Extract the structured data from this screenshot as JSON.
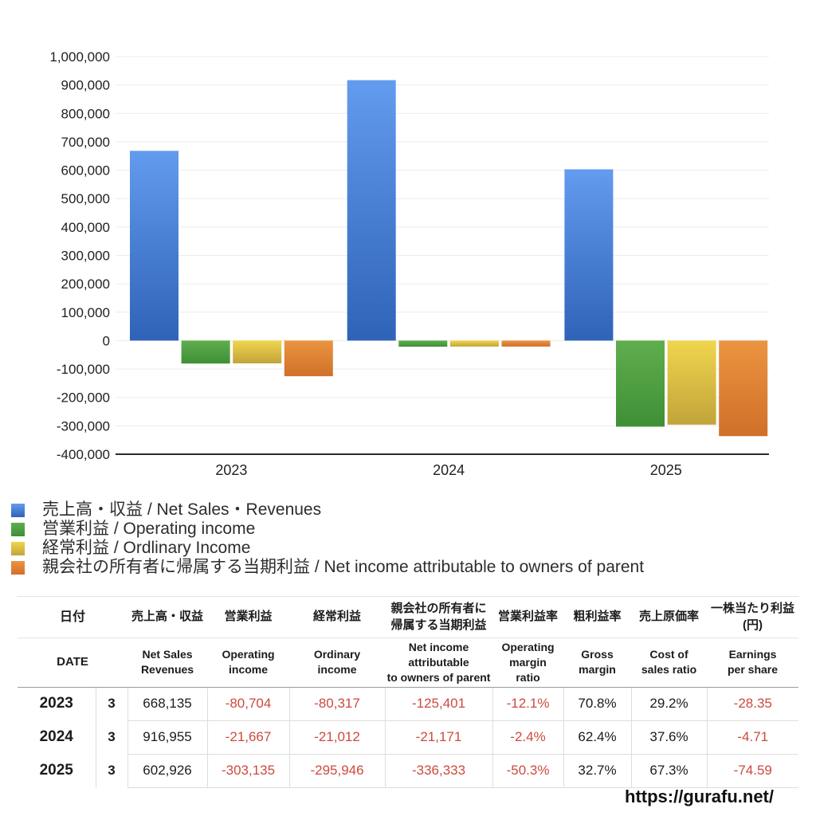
{
  "page": {
    "background": "#ffffff",
    "footer_url": "https://gurafu.net/"
  },
  "chart_data": {
    "type": "bar",
    "categories": [
      "2023",
      "2024",
      "2025"
    ],
    "series": [
      {
        "name": "売上高・収益 / Net Sales・Revenues",
        "color_top": "#639bee",
        "color_bottom": "#2f63b8",
        "values": [
          668135,
          916955,
          602926
        ]
      },
      {
        "name": "営業利益 / Operating income",
        "color_top": "#5fae4e",
        "color_bottom": "#3f8f36",
        "values": [
          -80704,
          -21667,
          -303135
        ]
      },
      {
        "name": "経常利益 / Ordlinary Income",
        "color_top": "#f0d54e",
        "color_bottom": "#c2a43a",
        "values": [
          -80317,
          -21012,
          -295946
        ]
      },
      {
        "name": "親会社の所有者に帰属する当期利益 / Net income attributable to owners of parent",
        "color_top": "#eb9440",
        "color_bottom": "#d0702a",
        "values": [
          -125401,
          -21171,
          -336333
        ]
      }
    ],
    "title": "",
    "xlabel": "",
    "ylabel": "",
    "ylim": [
      -400000,
      1000000
    ],
    "ytick_step": 100000,
    "ytick_labels": [
      "-400,000",
      "-300,000",
      "-200,000",
      "-100,000",
      "0",
      "100,000",
      "200,000",
      "300,000",
      "400,000",
      "500,000",
      "600,000",
      "700,000",
      "800,000",
      "900,000",
      "1,000,000"
    ],
    "grid": true,
    "gridline_color": "#ececec",
    "axis_line_color": "#2b2b2b",
    "legend_position": "bottom-left"
  },
  "table": {
    "header_jp": {
      "date": "日付",
      "cols": [
        "売上高・収益",
        "営業利益",
        "経常利益",
        "親会社の所有者に\n帰属する当期利益",
        "営業利益率",
        "粗利益率",
        "売上原価率",
        "一株当たり利益\n(円)"
      ]
    },
    "header_en": {
      "date": "DATE",
      "cols": [
        "Net Sales\nRevenues",
        "Operating\nincome",
        "Ordinary\nincome",
        "Net income attributable\nto owners of parent",
        "Operating\nmargin\nratio",
        "Gross\nmargin",
        "Cost of\nsales ratio",
        "Earnings\nper share"
      ]
    },
    "rows": [
      {
        "year": "2023",
        "month": "3",
        "values": [
          "668,135",
          "-80,704",
          "-80,317",
          "-125,401",
          "-12.1%",
          "70.8%",
          "29.2%",
          "-28.35"
        ]
      },
      {
        "year": "2024",
        "month": "3",
        "values": [
          "916,955",
          "-21,667",
          "-21,012",
          "-21,171",
          "-2.4%",
          "62.4%",
          "37.6%",
          "-4.71"
        ]
      },
      {
        "year": "2025",
        "month": "3",
        "values": [
          "602,926",
          "-303,135",
          "-295,946",
          "-336,333",
          "-50.3%",
          "32.7%",
          "67.3%",
          "-74.59"
        ]
      }
    ],
    "negative_color": "#cd4a3e"
  }
}
